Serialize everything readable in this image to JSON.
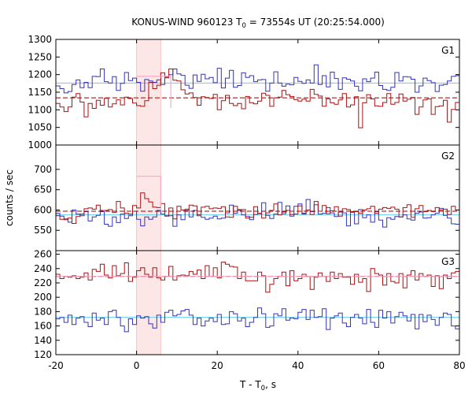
{
  "title_parts": {
    "prefix": "KONUS-WIND 960123 T",
    "sub": "0",
    "suffix": " = 73554s UT (20:25:54.000)"
  },
  "xlabel_parts": {
    "prefix": "T - T",
    "sub": "0",
    "suffix": ", s"
  },
  "ylabel": "counts / sec",
  "colors": {
    "blue": "#3333bb",
    "red": "#aa1111",
    "blue_bg": "#66ccee",
    "red_bg": "#990000",
    "highlight_fill": "#fde6e6",
    "highlight_edge": "#f6c5c5",
    "burst_fit": "#f7a8c8"
  },
  "chart_data": {
    "type": "line",
    "step": "histogram",
    "xlim": [
      -20,
      80
    ],
    "xticks": [
      -20,
      0,
      20,
      40,
      60,
      80
    ],
    "highlight_interval": [
      0,
      6
    ],
    "panels": [
      {
        "label": "G1",
        "ylim": [
          1000,
          1300
        ],
        "yticks": [
          1000,
          1050,
          1100,
          1150,
          1200,
          1250,
          1300
        ],
        "burst_level": {
          "x": [
            0,
            8.5
          ],
          "y": 1195
        },
        "series": [
          {
            "color": "blue",
            "background": 1176,
            "values": [
              1168,
              1160,
              1148,
              1152,
              1172,
              1185,
              1163,
              1178,
              1163,
              1195,
              1194,
              1216,
              1180,
              1176,
              1194,
              1155,
              1175,
              1206,
              1183,
              1190,
              1178,
              1153,
              1186,
              1182,
              1178,
              1185,
              1172,
              1193,
              1200,
              1216,
              1202,
              1198,
              1170,
              1161,
              1199,
              1181,
              1201,
              1188,
              1192,
              1177,
              1218,
              1162,
              1190,
              1212,
              1164,
              1169,
              1205,
              1192,
              1197,
              1180,
              1185,
              1186,
              1153,
              1176,
              1208,
              1176,
              1167,
              1173,
              1171,
              1192,
              1181,
              1175,
              1185,
              1176,
              1228,
              1172,
              1197,
              1165,
              1207,
              1189,
              1158,
              1191,
              1187,
              1182,
              1167,
              1154,
              1188,
              1180,
              1190,
              1207,
              1169,
              1158,
              1155,
              1164,
              1206,
              1182,
              1194,
              1193,
              1187,
              1150,
              1168,
              1190,
              1183,
              1177,
              1152,
              1170,
              1172,
              1182,
              1195,
              1197
            ]
          },
          {
            "color": "red",
            "background": 1134,
            "values": [
              1118,
              1108,
              1095,
              1108,
              1136,
              1146,
              1122,
              1080,
              1118,
              1104,
              1127,
              1113,
              1133,
              1108,
              1117,
              1128,
              1114,
              1136,
              1132,
              1119,
              1112,
              1110,
              1126,
              1178,
              1160,
              1170,
              1205,
              1191,
              1216,
              1184,
              1182,
              1157,
              1145,
              1148,
              1135,
              1113,
              1137,
              1135,
              1132,
              1144,
              1100,
              1126,
              1141,
              1118,
              1112,
              1118,
              1103,
              1138,
              1120,
              1117,
              1125,
              1147,
              1141,
              1110,
              1134,
              1136,
              1155,
              1143,
              1138,
              1129,
              1125,
              1130,
              1125,
              1158,
              1144,
              1139,
              1110,
              1131,
              1120,
              1116,
              1128,
              1146,
              1108,
              1114,
              1137,
              1049,
              1120,
              1143,
              1131,
              1111,
              1110,
              1121,
              1146,
              1116,
              1121,
              1145,
              1125,
              1130,
              1135,
              1087,
              1108,
              1128,
              1131,
              1087,
              1109,
              1111,
              1127,
              1065,
              1101,
              1121
            ]
          }
        ]
      },
      {
        "label": "G2",
        "ylim": [
          500,
          760
        ],
        "yticks": [
          550,
          600,
          650,
          700
        ],
        "burst_level": {
          "x": [
            0,
            6
          ],
          "y": 683
        },
        "series": [
          {
            "color": "blue",
            "background": 588,
            "values": [
              592,
              585,
              578,
              570,
              600,
              590,
              586,
              596,
              573,
              583,
              587,
              596,
              565,
              560,
              583,
              569,
              590,
              579,
              586,
              597,
              577,
              561,
              583,
              577,
              583,
              599,
              590,
              585,
              586,
              560,
              588,
              576,
              602,
              583,
              599,
              586,
              582,
              577,
              580,
              585,
              578,
              580,
              593,
              612,
              592,
              601,
              588,
              584,
              576,
              589,
              591,
              618,
              587,
              579,
              590,
              619,
              591,
              610,
              585,
              609,
              615,
              592,
              626,
              596,
              613,
              590,
              592,
              606,
              593,
              584,
              595,
              593,
              561,
              594,
              566,
              601,
              581,
              588,
              570,
              596,
              575,
              558,
              581,
              577,
              584,
              583,
              588,
              578,
              575,
              592,
              595,
              580,
              581,
              588,
              592,
              604,
              587,
              580,
              566,
              565
            ]
          },
          {
            "color": "red",
            "background": 597,
            "values": [
              586,
              577,
              576,
              580,
              567,
              584,
              590,
              603,
              605,
              602,
              612,
              599,
              599,
              601,
              594,
              621,
              605,
              592,
              590,
              611,
              605,
              642,
              628,
              620,
              607,
              606,
              616,
              586,
              605,
              578,
              609,
              600,
              599,
              612,
              610,
              589,
              607,
              609,
              603,
              605,
              604,
              608,
              583,
              582,
              609,
              599,
              601,
              580,
              582,
              608,
              592,
              580,
              593,
              599,
              615,
              588,
              595,
              599,
              589,
              590,
              610,
              590,
              600,
              589,
              621,
              597,
              611,
              591,
              598,
              608,
              585,
              603,
              601,
              596,
              596,
              592,
              600,
              603,
              609,
              592,
              602,
              606,
              604,
              607,
              602,
              583,
              606,
              613,
              582,
              603,
              611,
              596,
              599,
              596,
              606,
              600,
              602,
              589,
              609,
              600
            ]
          }
        ]
      },
      {
        "label": "G3",
        "ylim": [
          120,
          265
        ],
        "yticks": [
          120,
          140,
          160,
          180,
          200,
          220,
          240,
          260
        ],
        "burst_level": null,
        "series": [
          {
            "color": "blue",
            "background": 172,
            "values": [
              170,
              172,
              165,
              175,
              162,
              171,
              173,
              165,
              159,
              178,
              168,
              171,
              162,
              180,
              182,
              172,
              160,
              152,
              170,
              162,
              174,
              171,
              173,
              163,
              157,
              175,
              165,
              179,
              182,
              174,
              176,
              181,
              183,
              175,
              162,
              171,
              160,
              167,
              171,
              166,
              176,
              162,
              163,
              180,
              177,
              167,
              171,
              159,
              165,
              172,
              185,
              177,
              158,
              160,
              177,
              174,
              184,
              168,
              171,
              170,
              179,
              183,
              169,
              182,
              172,
              173,
              184,
              155,
              171,
              174,
              178,
              164,
              159,
              172,
              176,
              171,
              163,
              183,
              165,
              158,
              182,
              171,
              180,
              164,
              173,
              179,
              174,
              167,
              176,
              156,
              176,
              166,
              175,
              169,
              161,
              172,
              178,
              176,
              160,
              156
            ]
          },
          {
            "color": "red",
            "background": 229,
            "values": [
              232,
              226,
              229,
              228,
              230,
              226,
              228,
              234,
              224,
              239,
              236,
              246,
              231,
              227,
              244,
              230,
              233,
              248,
              222,
              228,
              237,
              241,
              232,
              228,
              241,
              227,
              224,
              229,
              243,
              224,
              230,
              231,
              230,
              236,
              232,
              238,
              226,
              244,
              229,
              241,
              227,
              249,
              246,
              243,
              242,
              226,
              235,
              223,
              223,
              223,
              235,
              230,
              207,
              218,
              226,
              229,
              235,
              216,
              237,
              223,
              226,
              232,
              229,
              211,
              228,
              234,
              229,
              222,
              235,
              226,
              233,
              228,
              228,
              218,
              232,
              221,
              226,
              208,
              240,
              233,
              231,
              217,
              233,
              222,
              220,
              233,
              213,
              231,
              237,
              224,
              233,
              229,
              231,
              215,
              230,
              212,
              231,
              226,
              234,
              236
            ]
          }
        ]
      }
    ]
  }
}
